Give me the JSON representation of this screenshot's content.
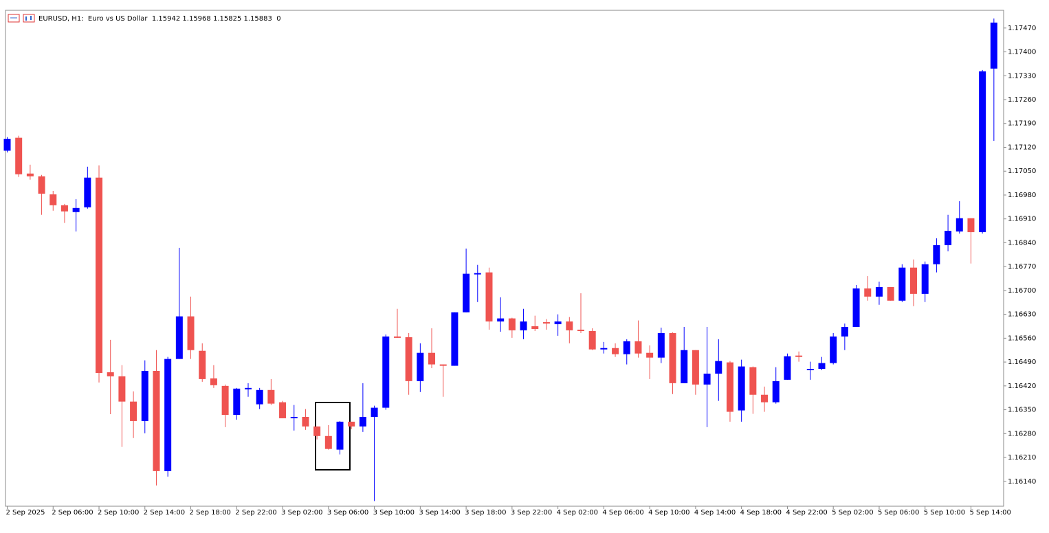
{
  "chart_data": {
    "type": "candlestick",
    "title": "EURUSD, H1:  Euro vs US Dollar  1.15942 1.15968 1.15825 1.15883  0",
    "up_color": "#0000ff",
    "down_color": "#ef5350",
    "categories": [
      "2 Sep 2025",
      null,
      null,
      null,
      "2 Sep 06:00",
      null,
      null,
      null,
      "2 Sep 10:00",
      null,
      null,
      null,
      "2 Sep 14:00",
      null,
      null,
      null,
      "2 Sep 18:00",
      null,
      null,
      null,
      "2 Sep 22:00",
      null,
      null,
      null,
      "3 Sep 02:00",
      null,
      null,
      null,
      "3 Sep 06:00",
      null,
      null,
      null,
      "3 Sep 10:00",
      null,
      null,
      null,
      "3 Sep 14:00",
      null,
      null,
      null,
      "3 Sep 18:00",
      null,
      null,
      null,
      "3 Sep 22:00",
      null,
      null,
      null,
      "4 Sep 02:00",
      null,
      null,
      null,
      "4 Sep 06:00",
      null,
      null,
      null,
      "4 Sep 10:00",
      null,
      null,
      null,
      "4 Sep 14:00",
      null,
      null,
      null,
      "4 Sep 18:00",
      null,
      null,
      null,
      "4 Sep 22:00",
      null,
      null,
      null,
      "5 Sep 02:00",
      null,
      null,
      null,
      "5 Sep 06:00",
      null,
      null,
      null,
      "5 Sep 10:00",
      null,
      null,
      null,
      "5 Sep 14:00",
      null,
      null
    ],
    "open": [
      1.1711,
      1.17148,
      1.17043,
      1.17035,
      1.16982,
      1.1695,
      1.1693,
      1.16944,
      1.17031,
      1.1646,
      1.16448,
      1.16374,
      1.16317,
      1.16464,
      1.1617,
      1.16499,
      1.16624,
      1.16523,
      1.16442,
      1.1642,
      1.16335,
      1.16412,
      1.16366,
      1.16408,
      1.16372,
      1.16325,
      1.16329,
      1.16301,
      1.16273,
      1.16233,
      1.16315,
      1.16301,
      1.16329,
      1.16356,
      1.16565,
      1.16563,
      1.16434,
      1.16517,
      1.16483,
      1.16479,
      1.16636,
      1.16747,
      1.16753,
      1.16609,
      1.16618,
      1.16583,
      1.16595,
      1.16607,
      1.16601,
      1.16609,
      1.16585,
      1.16581,
      1.16527,
      1.16531,
      1.16513,
      1.16551,
      1.16517,
      1.16503,
      1.16575,
      1.16428,
      1.16525,
      1.16424,
      1.16456,
      1.16489,
      1.16348,
      1.16475,
      1.16394,
      1.16372,
      1.16438,
      1.16509,
      1.16466,
      1.1647,
      1.16487,
      1.16565,
      1.16593,
      1.16706,
      1.16682,
      1.1671,
      1.1667,
      1.16767,
      1.1669,
      1.16777,
      1.16833,
      1.16873,
      1.16912,
      1.16871,
      1.17351
    ],
    "high": [
      1.1715,
      1.17154,
      1.17069,
      1.17039,
      1.16992,
      1.16954,
      1.16968,
      1.17063,
      1.17067,
      1.16555,
      1.16481,
      1.16404,
      1.16495,
      1.16525,
      1.16505,
      1.16825,
      1.16682,
      1.16545,
      1.16481,
      1.16424,
      1.16414,
      1.16428,
      1.16414,
      1.1644,
      1.16376,
      1.16364,
      1.16352,
      1.16301,
      1.16305,
      1.16317,
      1.16315,
      1.16428,
      1.16362,
      1.16571,
      1.16646,
      1.16575,
      1.16545,
      1.16589,
      1.16483,
      1.16636,
      1.16823,
      1.16775,
      1.16767,
      1.1668,
      1.1662,
      1.16646,
      1.16626,
      1.16616,
      1.1663,
      1.16622,
      1.16692,
      1.16589,
      1.16549,
      1.16545,
      1.16557,
      1.16612,
      1.16539,
      1.16591,
      1.16577,
      1.16593,
      1.16525,
      1.16593,
      1.16557,
      1.16493,
      1.16497,
      1.16477,
      1.16418,
      1.16475,
      1.16515,
      1.16521,
      1.16491,
      1.16505,
      1.16575,
      1.16603,
      1.16716,
      1.16742,
      1.16726,
      1.1671,
      1.16777,
      1.16791,
      1.16785,
      1.16853,
      1.16922,
      1.16962,
      1.16912,
      1.17347,
      1.17498
    ],
    "low": [
      1.17105,
      1.17033,
      1.17025,
      1.16922,
      1.16934,
      1.16898,
      1.16873,
      1.1694,
      1.1643,
      1.16337,
      1.16241,
      1.16267,
      1.16281,
      1.16128,
      1.16154,
      1.16499,
      1.16499,
      1.16432,
      1.16414,
      1.16299,
      1.16321,
      1.16388,
      1.16352,
      1.16364,
      1.16325,
      1.16289,
      1.16291,
      1.16263,
      1.16233,
      1.16219,
      1.16293,
      1.16285,
      1.16082,
      1.1635,
      1.16561,
      1.16394,
      1.16402,
      1.16472,
      1.16388,
      1.16479,
      1.16636,
      1.16666,
      1.16585,
      1.16579,
      1.16561,
      1.16557,
      1.16581,
      1.16585,
      1.16567,
      1.16545,
      1.16575,
      1.16525,
      1.16515,
      1.16505,
      1.16483,
      1.16503,
      1.1644,
      1.16487,
      1.16396,
      1.16428,
      1.16394,
      1.16299,
      1.16376,
      1.16315,
      1.16315,
      1.16338,
      1.16344,
      1.16368,
      1.16438,
      1.16491,
      1.16438,
      1.16466,
      1.16483,
      1.16525,
      1.16593,
      1.1667,
      1.16658,
      1.1667,
      1.16666,
      1.16654,
      1.16666,
      1.16753,
      1.16815,
      1.16867,
      1.16779,
      1.16867,
      1.17139
    ],
    "close": [
      1.17145,
      1.17041,
      1.17035,
      1.16984,
      1.1695,
      1.16932,
      1.16942,
      1.17031,
      1.16458,
      1.16448,
      1.16374,
      1.16317,
      1.16464,
      1.1617,
      1.16499,
      1.16624,
      1.16525,
      1.1644,
      1.16422,
      1.16335,
      1.16412,
      1.16414,
      1.16408,
      1.16368,
      1.16325,
      1.16329,
      1.16301,
      1.16273,
      1.16235,
      1.16315,
      1.16301,
      1.16329,
      1.16356,
      1.16565,
      1.16563,
      1.16434,
      1.16517,
      1.16483,
      1.16479,
      1.16636,
      1.16749,
      1.16751,
      1.16609,
      1.16618,
      1.16583,
      1.16609,
      1.16587,
      1.16603,
      1.16609,
      1.16583,
      1.16581,
      1.16527,
      1.16531,
      1.16513,
      1.16551,
      1.16515,
      1.16503,
      1.16575,
      1.16428,
      1.16525,
      1.16424,
      1.16456,
      1.16493,
      1.16344,
      1.16477,
      1.16394,
      1.16372,
      1.16434,
      1.16507,
      1.16505,
      1.1647,
      1.16487,
      1.16565,
      1.16593,
      1.16706,
      1.16682,
      1.1671,
      1.1667,
      1.16767,
      1.1669,
      1.16777,
      1.16833,
      1.16875,
      1.16912,
      1.16871,
      1.17343,
      1.17486
    ],
    "ylim": [
      1.16067,
      1.17522
    ],
    "yticks": [
      {
        "value": 1.1614,
        "label": "1.16140"
      },
      {
        "value": 1.1621,
        "label": "1.16210"
      },
      {
        "value": 1.1628,
        "label": "1.16280"
      },
      {
        "value": 1.1635,
        "label": "1.16350"
      },
      {
        "value": 1.1642,
        "label": "1.16420"
      },
      {
        "value": 1.1649,
        "label": "1.16490"
      },
      {
        "value": 1.1656,
        "label": "1.16560"
      },
      {
        "value": 1.1663,
        "label": "1.16630"
      },
      {
        "value": 1.167,
        "label": "1.16700"
      },
      {
        "value": 1.1677,
        "label": "1.16770"
      },
      {
        "value": 1.1684,
        "label": "1.16840"
      },
      {
        "value": 1.1691,
        "label": "1.16910"
      },
      {
        "value": 1.1698,
        "label": "1.16980"
      },
      {
        "value": 1.1705,
        "label": "1.17050"
      },
      {
        "value": 1.1712,
        "label": "1.17120"
      },
      {
        "value": 1.1719,
        "label": "1.17190"
      },
      {
        "value": 1.1726,
        "label": "1.17260"
      },
      {
        "value": 1.1733,
        "label": "1.17330"
      },
      {
        "value": 1.174,
        "label": "1.17400"
      },
      {
        "value": 1.1747,
        "label": "1.17470"
      }
    ],
    "grid": false
  }
}
